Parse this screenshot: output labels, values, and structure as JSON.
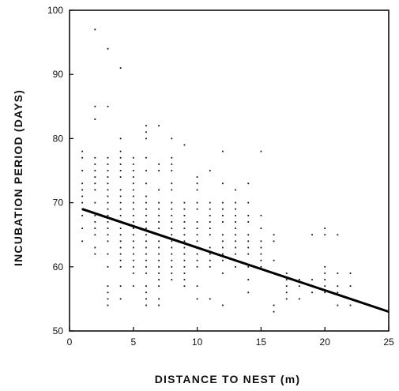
{
  "chart_data": {
    "type": "scatter",
    "title": "",
    "xlabel": "DISTANCE TO NEST (m)",
    "ylabel": "INCUBATION PERIOD (DAYS)",
    "xlim": [
      0,
      25
    ],
    "ylim": [
      50,
      100
    ],
    "x_ticks": [
      0,
      5,
      10,
      15,
      20,
      25
    ],
    "y_ticks": [
      50,
      60,
      70,
      80,
      90,
      100
    ],
    "grid": false,
    "legend": "none",
    "colors": {
      "points": "#111111",
      "line": "#000000",
      "axes": "#111111"
    },
    "regression_line": {
      "x": [
        1,
        25
      ],
      "y": [
        69,
        53
      ]
    },
    "points": {
      "x": [
        1,
        1,
        1,
        1,
        1,
        1,
        1,
        1,
        1,
        1,
        1,
        2,
        2,
        2,
        2,
        2,
        2,
        2,
        2,
        2,
        2,
        2,
        2,
        2,
        2,
        2,
        2,
        3,
        3,
        3,
        3,
        3,
        3,
        3,
        3,
        3,
        3,
        3,
        3,
        3,
        3,
        3,
        3,
        3,
        3,
        3,
        3,
        3,
        3,
        4,
        4,
        4,
        4,
        4,
        4,
        4,
        4,
        4,
        4,
        4,
        4,
        4,
        4,
        4,
        4,
        4,
        4,
        4,
        4,
        4,
        4,
        5,
        5,
        5,
        5,
        5,
        5,
        5,
        5,
        5,
        5,
        5,
        5,
        5,
        5,
        5,
        5,
        5,
        5,
        5,
        5,
        6,
        6,
        6,
        6,
        6,
        6,
        6,
        6,
        6,
        6,
        6,
        6,
        6,
        6,
        6,
        6,
        6,
        6,
        6,
        6,
        6,
        6,
        6,
        7,
        7,
        7,
        7,
        7,
        7,
        7,
        7,
        7,
        7,
        7,
        7,
        7,
        7,
        7,
        7,
        7,
        7,
        7,
        7,
        8,
        8,
        8,
        8,
        8,
        8,
        8,
        8,
        8,
        8,
        8,
        8,
        8,
        8,
        8,
        8,
        8,
        8,
        8,
        9,
        9,
        9,
        9,
        9,
        9,
        9,
        9,
        9,
        9,
        9,
        9,
        9,
        9,
        9,
        10,
        10,
        10,
        10,
        10,
        10,
        10,
        10,
        10,
        10,
        10,
        10,
        10,
        10,
        10,
        11,
        11,
        11,
        11,
        11,
        11,
        11,
        11,
        11,
        11,
        11,
        11,
        12,
        12,
        12,
        12,
        12,
        12,
        12,
        12,
        12,
        12,
        12,
        12,
        12,
        13,
        13,
        13,
        13,
        13,
        13,
        13,
        13,
        13,
        13,
        13,
        14,
        14,
        14,
        14,
        14,
        14,
        14,
        14,
        14,
        14,
        14,
        15,
        15,
        15,
        15,
        15,
        15,
        15,
        15,
        16,
        16,
        16,
        16,
        16,
        16,
        17,
        17,
        17,
        17,
        17,
        18,
        18,
        18,
        19,
        19,
        19,
        20,
        20,
        20,
        20,
        20,
        20,
        20,
        21,
        21,
        21,
        21,
        21,
        22,
        22,
        22
      ],
      "y": [
        78,
        77,
        75,
        73,
        72,
        71,
        70,
        69,
        68,
        66,
        64,
        97,
        85,
        83,
        77,
        76,
        75,
        74,
        73,
        72,
        70,
        68,
        67,
        66,
        65,
        63,
        62,
        94,
        85,
        77,
        76,
        75,
        74,
        73,
        72,
        71,
        70,
        69,
        68,
        67,
        66,
        65,
        64,
        62,
        60,
        57,
        56,
        55,
        54,
        91,
        80,
        78,
        77,
        76,
        75,
        74,
        72,
        71,
        70,
        69,
        68,
        67,
        66,
        65,
        64,
        63,
        62,
        61,
        60,
        57,
        55,
        77,
        76,
        75,
        74,
        73,
        72,
        71,
        70,
        69,
        68,
        67,
        66,
        65,
        64,
        63,
        62,
        61,
        60,
        59,
        57,
        82,
        81,
        80,
        77,
        75,
        73,
        71,
        70,
        69,
        68,
        67,
        66,
        65,
        64,
        63,
        62,
        61,
        60,
        59,
        57,
        56,
        55,
        54,
        82,
        76,
        75,
        72,
        70,
        69,
        68,
        67,
        66,
        65,
        64,
        63,
        62,
        61,
        60,
        59,
        58,
        57,
        55,
        54,
        80,
        77,
        76,
        75,
        73,
        72,
        70,
        69,
        68,
        67,
        66,
        65,
        64,
        63,
        62,
        61,
        60,
        59,
        58,
        79,
        70,
        69,
        68,
        67,
        66,
        65,
        64,
        63,
        62,
        61,
        60,
        59,
        58,
        57,
        74,
        73,
        72,
        70,
        69,
        67,
        66,
        65,
        64,
        63,
        62,
        61,
        60,
        57,
        55,
        75,
        70,
        69,
        68,
        67,
        66,
        65,
        63,
        62,
        61,
        60,
        55,
        78,
        73,
        70,
        69,
        68,
        67,
        65,
        64,
        63,
        62,
        61,
        59,
        54,
        72,
        70,
        69,
        68,
        67,
        66,
        65,
        64,
        63,
        62,
        60,
        73,
        70,
        68,
        67,
        65,
        64,
        63,
        62,
        60,
        58,
        56,
        78,
        68,
        66,
        64,
        63,
        62,
        61,
        60,
        65,
        64,
        61,
        59,
        54,
        53,
        59,
        58,
        57,
        56,
        55,
        58,
        57,
        55,
        65,
        58,
        56,
        66,
        65,
        60,
        59,
        58,
        57,
        56,
        65,
        59,
        57,
        56,
        54,
        59,
        57,
        54
      ]
    }
  }
}
